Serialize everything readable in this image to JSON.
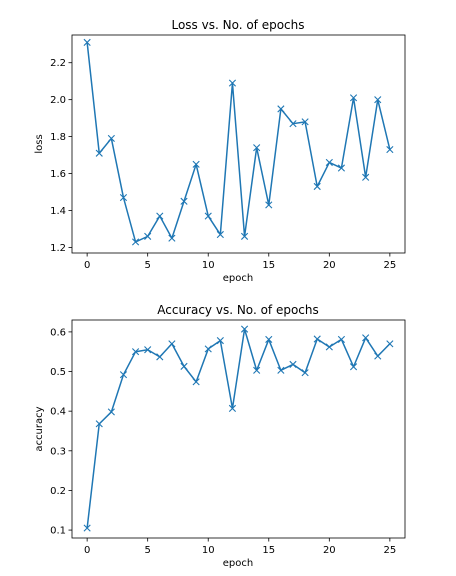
{
  "chart_data": [
    {
      "type": "line",
      "title": "Loss vs. No. of epochs",
      "xlabel": "epoch",
      "ylabel": "loss",
      "marker": "x",
      "color": "#1f77b4",
      "grid": false,
      "xlim": [
        -1.25,
        26.25
      ],
      "ylim": [
        1.17,
        2.35
      ],
      "xticks": [
        0,
        5,
        10,
        15,
        20,
        25
      ],
      "yticks": [
        1.2,
        1.4,
        1.6,
        1.8,
        2.0,
        2.2
      ],
      "ytick_labels": [
        "1.2",
        "1.4",
        "1.6",
        "1.8",
        "2.0",
        "2.2"
      ],
      "series": [
        {
          "x": [
            0,
            1,
            2,
            3,
            4,
            5,
            6,
            7,
            8,
            9,
            10,
            11,
            12,
            13,
            14,
            15,
            16,
            17,
            18,
            19,
            20,
            21,
            22,
            23,
            24,
            25
          ],
          "values": [
            2.31,
            1.71,
            1.79,
            1.47,
            1.23,
            1.26,
            1.37,
            1.25,
            1.45,
            1.65,
            1.37,
            1.27,
            2.09,
            1.26,
            1.74,
            1.43,
            1.95,
            1.87,
            1.88,
            1.53,
            1.66,
            1.63,
            2.01,
            1.58,
            2.0,
            1.73
          ]
        }
      ]
    },
    {
      "type": "line",
      "title": "Accuracy vs. No. of epochs",
      "xlabel": "epoch",
      "ylabel": "accuracy",
      "marker": "x",
      "color": "#1f77b4",
      "grid": false,
      "xlim": [
        -1.25,
        26.25
      ],
      "ylim": [
        0.08,
        0.63
      ],
      "xticks": [
        0,
        5,
        10,
        15,
        20,
        25
      ],
      "yticks": [
        0.1,
        0.2,
        0.3,
        0.4,
        0.5,
        0.6
      ],
      "ytick_labels": [
        "0.1",
        "0.2",
        "0.3",
        "0.4",
        "0.5",
        "0.6"
      ],
      "series": [
        {
          "x": [
            0,
            1,
            2,
            3,
            4,
            5,
            6,
            7,
            8,
            9,
            10,
            11,
            12,
            13,
            14,
            15,
            16,
            17,
            18,
            19,
            20,
            21,
            22,
            23,
            24,
            25
          ],
          "values": [
            0.105,
            0.368,
            0.398,
            0.492,
            0.55,
            0.555,
            0.537,
            0.57,
            0.513,
            0.474,
            0.557,
            0.578,
            0.407,
            0.607,
            0.503,
            0.581,
            0.503,
            0.518,
            0.497,
            0.582,
            0.562,
            0.581,
            0.512,
            0.585,
            0.539,
            0.57
          ]
        }
      ]
    }
  ]
}
